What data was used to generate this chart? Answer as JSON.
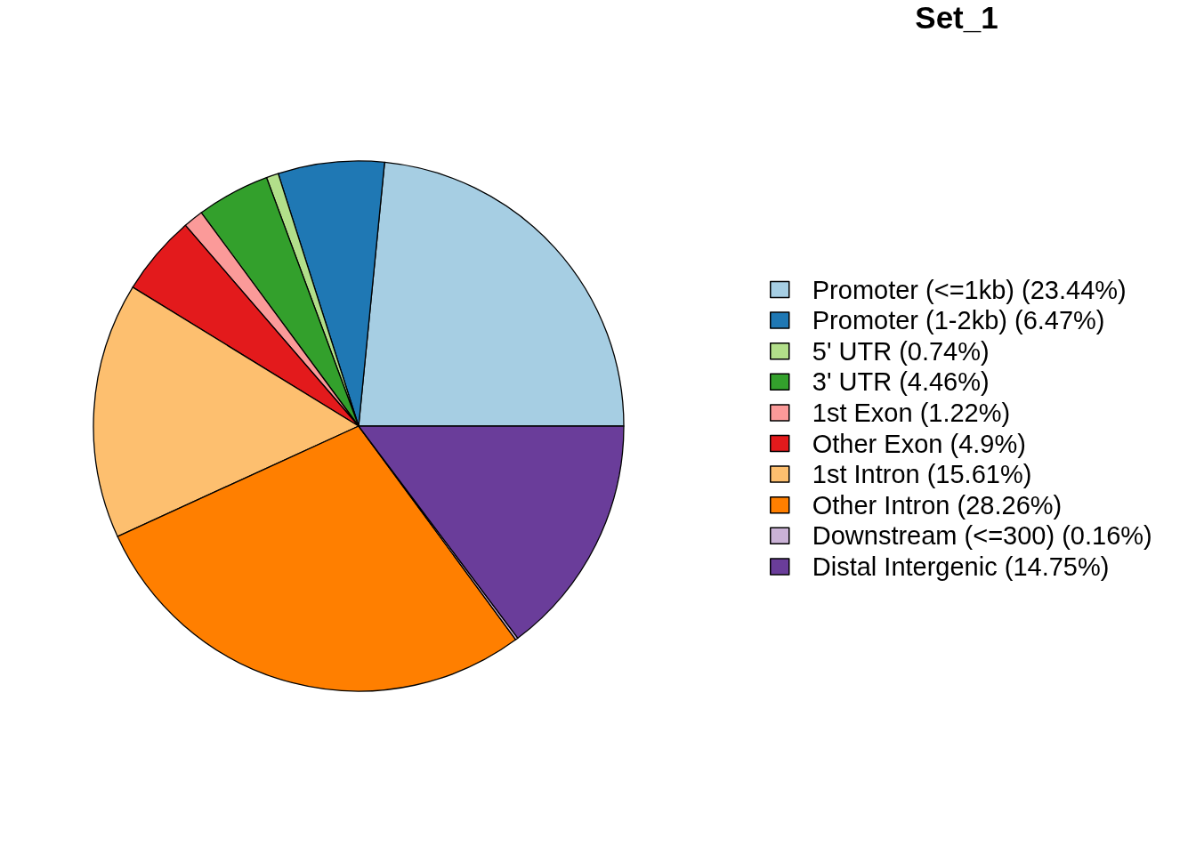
{
  "chart_data": {
    "type": "pie",
    "title": "Set_1",
    "categories": [
      "Promoter (<=1kb) (23.44%)",
      "Promoter (1-2kb) (6.47%)",
      "5' UTR (0.74%)",
      "3' UTR (4.46%)",
      "1st Exon (1.22%)",
      "Other Exon (4.9%)",
      "1st Intron (15.61%)",
      "Other Intron (28.26%)",
      "Downstream (<=300) (0.16%)",
      "Distal Intergenic (14.75%)"
    ],
    "values": [
      23.44,
      6.47,
      0.74,
      4.46,
      1.22,
      4.9,
      15.61,
      28.26,
      0.16,
      14.75
    ],
    "colors": [
      "#a6cee3",
      "#1f78b4",
      "#b2df8a",
      "#33a02c",
      "#fb9a99",
      "#e31a1c",
      "#fdbf6f",
      "#ff7f00",
      "#cab2d6",
      "#6a3d9a"
    ],
    "legend": "right"
  }
}
